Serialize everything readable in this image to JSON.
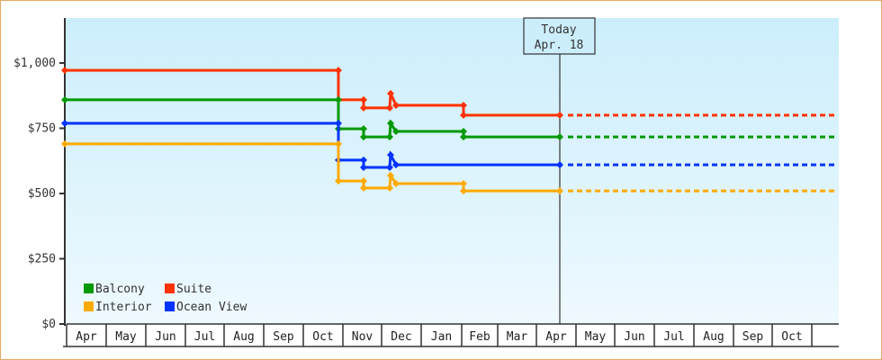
{
  "chart_data": {
    "type": "line",
    "title": "",
    "xlabel": "",
    "ylabel": "",
    "ylim": [
      0,
      1200
    ],
    "y_ticks": [
      "$0",
      "$250",
      "$500",
      "$750",
      "$1,000"
    ],
    "categories": [
      "Apr",
      "May",
      "Jun",
      "Jul",
      "Aug",
      "Sep",
      "Oct",
      "Nov",
      "Dec",
      "Jan",
      "Feb",
      "Mar",
      "Apr",
      "May",
      "Jun",
      "Jul",
      "Aug",
      "Sep",
      "Oct"
    ],
    "today_marker": {
      "label_line1": "Today",
      "label_line2": "Apr. 18"
    },
    "legend": [
      "Balcony",
      "Suite",
      "Interior",
      "Ocean View"
    ],
    "series": [
      {
        "name": "Suite",
        "color": "#ff3300",
        "points": [
          [
            "Apr",
            972
          ],
          [
            "Oct",
            972
          ],
          [
            "Oct",
            859
          ],
          [
            "Nov",
            859
          ],
          [
            "Nov",
            828
          ],
          [
            "Dec",
            828
          ],
          [
            "Dec",
            883
          ],
          [
            "Dec",
            838
          ],
          [
            "Feb",
            838
          ],
          [
            "Feb",
            800
          ],
          [
            "Apr (today)",
            800
          ]
        ],
        "projected": 800
      },
      {
        "name": "Balcony",
        "color": "#009900",
        "points": [
          [
            "Apr",
            859
          ],
          [
            "Oct",
            859
          ],
          [
            "Oct",
            748
          ],
          [
            "Nov",
            748
          ],
          [
            "Nov",
            717
          ],
          [
            "Dec",
            717
          ],
          [
            "Dec",
            769
          ],
          [
            "Dec",
            738
          ],
          [
            "Feb",
            738
          ],
          [
            "Feb",
            717
          ],
          [
            "Apr (today)",
            717
          ]
        ],
        "projected": 717
      },
      {
        "name": "Ocean View",
        "color": "#0033ff",
        "points": [
          [
            "Apr",
            769
          ],
          [
            "Oct",
            769
          ],
          [
            "Oct",
            628
          ],
          [
            "Nov",
            628
          ],
          [
            "Nov",
            600
          ],
          [
            "Dec",
            600
          ],
          [
            "Dec",
            648
          ],
          [
            "Dec",
            610
          ],
          [
            "Apr (today)",
            610
          ]
        ],
        "projected": 610
      },
      {
        "name": "Interior",
        "color": "#ffaa00",
        "points": [
          [
            "Apr",
            690
          ],
          [
            "Oct",
            690
          ],
          [
            "Oct",
            548
          ],
          [
            "Nov",
            548
          ],
          [
            "Nov",
            521
          ],
          [
            "Dec",
            521
          ],
          [
            "Dec",
            569
          ],
          [
            "Dec",
            538
          ],
          [
            "Feb",
            538
          ],
          [
            "Feb",
            510
          ],
          [
            "Apr (today)",
            510
          ]
        ],
        "projected": 510
      }
    ],
    "grid": false,
    "legend_position": "bottom-left inside plot"
  }
}
